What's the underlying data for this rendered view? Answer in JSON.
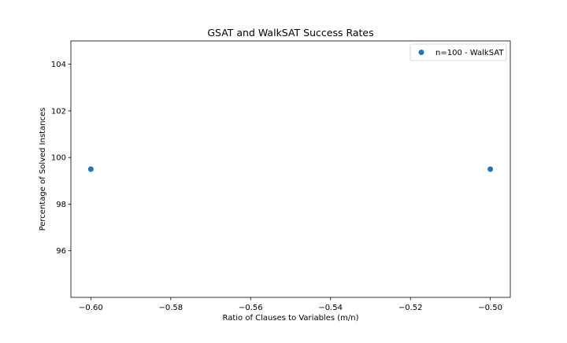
{
  "chart_data": {
    "type": "scatter",
    "title": "GSAT and WalkSAT Success Rates",
    "xlabel": "Ratio of Clauses to Variables (m/n)",
    "ylabel": "Percentage of Solved Instances",
    "xlim": [
      -0.605,
      -0.495
    ],
    "ylim": [
      94,
      105
    ],
    "xticks": [
      -0.6,
      -0.58,
      -0.56,
      -0.54,
      -0.52,
      -0.5
    ],
    "xtick_labels": [
      "−0.60",
      "−0.58",
      "−0.56",
      "−0.54",
      "−0.52",
      "−0.50"
    ],
    "yticks": [
      96,
      98,
      100,
      102,
      104
    ],
    "ytick_labels": [
      "96",
      "98",
      "100",
      "102",
      "104"
    ],
    "grid": false,
    "legend_position": "top-right",
    "series": [
      {
        "name": "n=100 - WalkSAT",
        "color": "#1f77b4",
        "x": [
          -0.6,
          -0.5
        ],
        "y": [
          99.5,
          99.5
        ]
      }
    ]
  }
}
